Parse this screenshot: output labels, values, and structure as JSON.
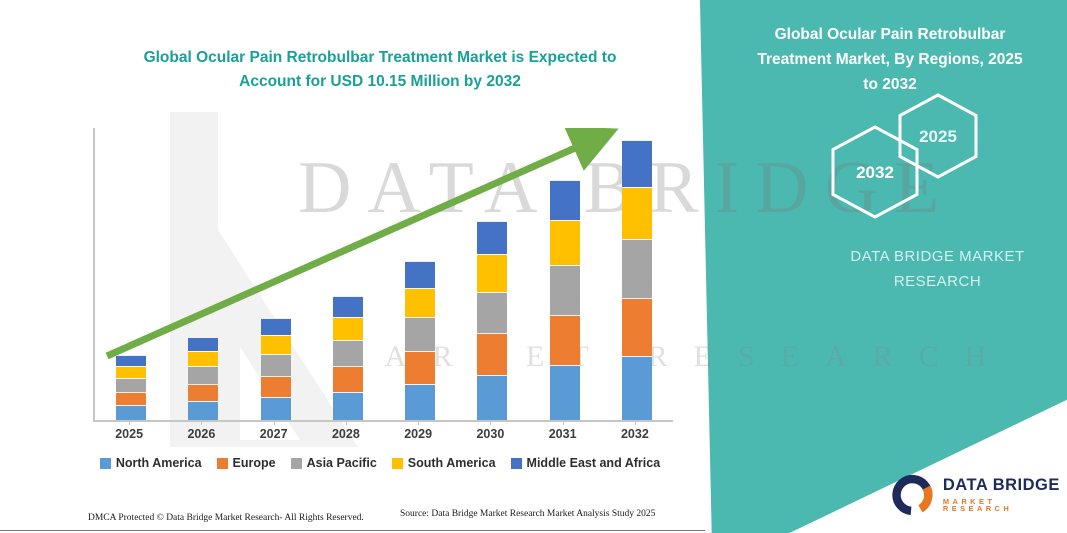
{
  "colors": {
    "teal_panel": "#4cb9b1",
    "headline_teal": "#18a099",
    "arrow_green": "#70ad47",
    "axis_gray": "#c6c6c6",
    "logo_navy": "#1c2b5a",
    "logo_orange": "#e87722"
  },
  "headline": {
    "line1": "Global Ocular Pain Retrobulbar Treatment Market is Expected to",
    "line2": "Account for USD 10.15 Million by 2032"
  },
  "chart_data": {
    "type": "bar",
    "stacked": true,
    "title": "Global Ocular Pain Retrobulbar Treatment Market is Expected to Account for USD 10.15 Million by 2032",
    "unit": "USD Million",
    "categories": [
      "2025",
      "2026",
      "2027",
      "2028",
      "2029",
      "2030",
      "2031",
      "2032"
    ],
    "totals": [
      2.36,
      3.01,
      3.7,
      4.5,
      5.76,
      7.21,
      8.7,
      10.15
    ],
    "series": [
      {
        "name": "North America",
        "color": "#5b9bd5",
        "values": [
          0.55,
          0.7,
          0.85,
          1.03,
          1.32,
          1.65,
          1.99,
          2.32
        ]
      },
      {
        "name": "Europe",
        "color": "#ed7d31",
        "values": [
          0.48,
          0.62,
          0.76,
          0.93,
          1.19,
          1.49,
          1.8,
          2.1
        ]
      },
      {
        "name": "Asia Pacific",
        "color": "#a5a5a5",
        "values": [
          0.5,
          0.63,
          0.78,
          0.95,
          1.21,
          1.52,
          1.83,
          2.13
        ]
      },
      {
        "name": "South America",
        "color": "#ffc000",
        "values": [
          0.44,
          0.56,
          0.69,
          0.84,
          1.08,
          1.35,
          1.63,
          1.9
        ]
      },
      {
        "name": "Middle East and Africa",
        "color": "#4472c4",
        "values": [
          0.39,
          0.5,
          0.62,
          0.75,
          0.96,
          1.2,
          1.45,
          1.7
        ]
      }
    ],
    "trend_arrow": true,
    "legend_position": "bottom",
    "gridlines": false,
    "xlabel": "",
    "ylabel": ""
  },
  "watermark": {
    "line1": "DATA BRIDGE",
    "line2": "MARKET RESEARCH"
  },
  "panel": {
    "title_lines": [
      "Global Ocular Pain Retrobulbar",
      "Treatment Market, By Regions, 2025",
      "to 2032"
    ],
    "hex_back_label": "2032",
    "hex_front_label": "2025",
    "brand_line1": "DATA BRIDGE MARKET",
    "brand_line2": "RESEARCH"
  },
  "logo": {
    "name": "DATA BRIDGE",
    "tagline": "MARKET RESEARCH"
  },
  "footer": {
    "dmca": "DMCA Protected © Data Bridge Market Research-  All Rights Reserved.",
    "source": "Source: Data Bridge Market Research  Market Analysis Study 2025"
  }
}
